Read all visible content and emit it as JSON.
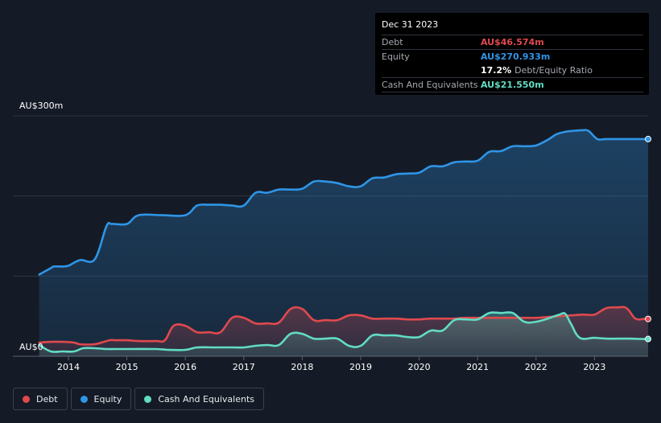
{
  "chart_data": {
    "type": "area",
    "y_label_top": "AU$300m",
    "y_label_bottom": "AU$0",
    "ylim": [
      0,
      300
    ],
    "xlim": [
      2013.5,
      2024.0
    ],
    "x_ticks": [
      "2014",
      "2015",
      "2016",
      "2017",
      "2018",
      "2019",
      "2020",
      "2021",
      "2022",
      "2023"
    ],
    "series": [
      {
        "name": "Equity",
        "color": "#2f95e6",
        "points": [
          [
            2013.5,
            102
          ],
          [
            2013.7,
            110
          ],
          [
            2013.75,
            112
          ],
          [
            2013.9,
            112
          ],
          [
            2014.0,
            113
          ],
          [
            2014.2,
            120
          ],
          [
            2014.45,
            121
          ],
          [
            2014.65,
            162
          ],
          [
            2014.75,
            165
          ],
          [
            2015.0,
            165
          ],
          [
            2015.2,
            176
          ],
          [
            2015.6,
            176
          ],
          [
            2016.0,
            176
          ],
          [
            2016.2,
            188
          ],
          [
            2016.4,
            189
          ],
          [
            2016.6,
            189
          ],
          [
            2016.8,
            188
          ],
          [
            2017.0,
            188
          ],
          [
            2017.2,
            204
          ],
          [
            2017.4,
            204
          ],
          [
            2017.6,
            208
          ],
          [
            2017.8,
            208
          ],
          [
            2018.0,
            209
          ],
          [
            2018.2,
            218
          ],
          [
            2018.4,
            218
          ],
          [
            2018.6,
            216
          ],
          [
            2018.8,
            212
          ],
          [
            2019.0,
            212
          ],
          [
            2019.2,
            222
          ],
          [
            2019.4,
            223
          ],
          [
            2019.6,
            227
          ],
          [
            2019.8,
            228
          ],
          [
            2020.0,
            229
          ],
          [
            2020.2,
            237
          ],
          [
            2020.4,
            237
          ],
          [
            2020.6,
            242
          ],
          [
            2020.8,
            243
          ],
          [
            2021.0,
            244
          ],
          [
            2021.2,
            255
          ],
          [
            2021.4,
            256
          ],
          [
            2021.6,
            262
          ],
          [
            2021.8,
            262
          ],
          [
            2022.0,
            263
          ],
          [
            2022.2,
            270
          ],
          [
            2022.35,
            277
          ],
          [
            2022.5,
            280
          ],
          [
            2022.6,
            281
          ],
          [
            2022.8,
            282
          ],
          [
            2022.9,
            281
          ],
          [
            2023.05,
            271
          ],
          [
            2023.2,
            271
          ],
          [
            2023.5,
            271
          ],
          [
            2023.7,
            271
          ],
          [
            2024.0,
            271
          ]
        ]
      },
      {
        "name": "Debt",
        "color": "#e0494e",
        "points": [
          [
            2013.5,
            17
          ],
          [
            2013.7,
            18
          ],
          [
            2013.9,
            18
          ],
          [
            2014.1,
            17
          ],
          [
            2014.2,
            15
          ],
          [
            2014.45,
            15
          ],
          [
            2014.7,
            20
          ],
          [
            2014.8,
            20
          ],
          [
            2015.0,
            20
          ],
          [
            2015.2,
            19
          ],
          [
            2015.5,
            19
          ],
          [
            2015.65,
            20
          ],
          [
            2015.8,
            38
          ],
          [
            2016.0,
            38
          ],
          [
            2016.2,
            30
          ],
          [
            2016.4,
            30
          ],
          [
            2016.6,
            30
          ],
          [
            2016.8,
            48
          ],
          [
            2017.0,
            48
          ],
          [
            2017.2,
            41
          ],
          [
            2017.4,
            41
          ],
          [
            2017.6,
            42
          ],
          [
            2017.8,
            59
          ],
          [
            2018.0,
            59
          ],
          [
            2018.2,
            45
          ],
          [
            2018.4,
            45
          ],
          [
            2018.6,
            45
          ],
          [
            2018.8,
            51
          ],
          [
            2019.0,
            51
          ],
          [
            2019.2,
            47
          ],
          [
            2019.4,
            47
          ],
          [
            2019.6,
            47
          ],
          [
            2019.8,
            46
          ],
          [
            2020.0,
            46
          ],
          [
            2020.2,
            47
          ],
          [
            2020.4,
            47
          ],
          [
            2020.6,
            47
          ],
          [
            2020.8,
            48
          ],
          [
            2021.0,
            48
          ],
          [
            2021.2,
            48
          ],
          [
            2021.4,
            48
          ],
          [
            2021.6,
            48
          ],
          [
            2021.8,
            48
          ],
          [
            2022.0,
            48
          ],
          [
            2022.2,
            49
          ],
          [
            2022.4,
            50
          ],
          [
            2022.6,
            51
          ],
          [
            2022.8,
            52
          ],
          [
            2023.0,
            52
          ],
          [
            2023.2,
            60
          ],
          [
            2023.4,
            61
          ],
          [
            2023.55,
            60
          ],
          [
            2023.7,
            47
          ],
          [
            2023.85,
            46.574
          ],
          [
            2024.0,
            46.574
          ]
        ]
      },
      {
        "name": "Cash And Equivalents",
        "color": "#62dcc4",
        "points": [
          [
            2013.5,
            14
          ],
          [
            2013.7,
            6
          ],
          [
            2013.9,
            6
          ],
          [
            2014.1,
            6
          ],
          [
            2014.25,
            10
          ],
          [
            2014.45,
            10
          ],
          [
            2014.65,
            9
          ],
          [
            2014.8,
            9
          ],
          [
            2015.0,
            9
          ],
          [
            2015.5,
            9
          ],
          [
            2015.7,
            8
          ],
          [
            2016.0,
            8
          ],
          [
            2016.2,
            11
          ],
          [
            2016.5,
            11
          ],
          [
            2016.8,
            11
          ],
          [
            2017.0,
            11
          ],
          [
            2017.2,
            13
          ],
          [
            2017.4,
            14
          ],
          [
            2017.6,
            14
          ],
          [
            2017.8,
            28
          ],
          [
            2018.0,
            28
          ],
          [
            2018.2,
            22
          ],
          [
            2018.4,
            22
          ],
          [
            2018.6,
            22
          ],
          [
            2018.8,
            13
          ],
          [
            2019.0,
            13
          ],
          [
            2019.2,
            26
          ],
          [
            2019.4,
            26
          ],
          [
            2019.6,
            26
          ],
          [
            2019.8,
            24
          ],
          [
            2020.0,
            24
          ],
          [
            2020.2,
            32
          ],
          [
            2020.4,
            32
          ],
          [
            2020.6,
            45
          ],
          [
            2020.8,
            46
          ],
          [
            2021.0,
            46
          ],
          [
            2021.2,
            54
          ],
          [
            2021.4,
            54
          ],
          [
            2021.6,
            54
          ],
          [
            2021.8,
            43
          ],
          [
            2022.0,
            43
          ],
          [
            2022.2,
            47
          ],
          [
            2022.4,
            52
          ],
          [
            2022.5,
            53
          ],
          [
            2022.6,
            40
          ],
          [
            2022.75,
            23
          ],
          [
            2023.0,
            23
          ],
          [
            2023.2,
            22
          ],
          [
            2023.4,
            22
          ],
          [
            2023.6,
            22
          ],
          [
            2023.8,
            21.55
          ],
          [
            2024.0,
            21.55
          ]
        ]
      }
    ]
  },
  "tooltip": {
    "date": "Dec 31 2023",
    "debt_label": "Debt",
    "debt_value": "AU$46.574m",
    "equity_label": "Equity",
    "equity_value": "AU$270.933m",
    "ratio_value": "17.2%",
    "ratio_label": "Debt/Equity Ratio",
    "cash_label": "Cash And Equivalents",
    "cash_value": "AU$21.550m",
    "colors": {
      "debt": "#e0494e",
      "equity": "#2f95e6",
      "cash": "#62dcc4"
    }
  },
  "legend": {
    "items": [
      {
        "label": "Debt",
        "color": "#e0494e"
      },
      {
        "label": "Equity",
        "color": "#2f95e6"
      },
      {
        "label": "Cash And Equivalents",
        "color": "#62dcc4"
      }
    ]
  }
}
